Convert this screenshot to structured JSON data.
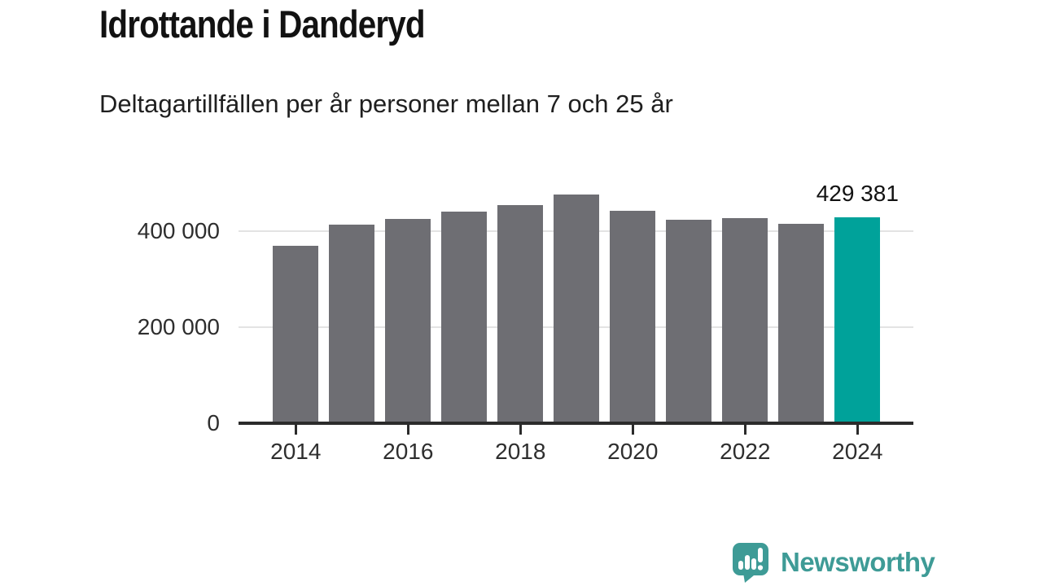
{
  "header": {
    "title": "Idrottande i Danderyd",
    "subtitle": "Deltagartillfällen per år personer mellan 7 och 25 år"
  },
  "chart_data": {
    "type": "bar",
    "title": "Idrottande i Danderyd",
    "subtitle": "Deltagartillfällen per år personer mellan 7 och 25 år",
    "xlabel": "",
    "ylabel": "",
    "categories": [
      2014,
      2015,
      2016,
      2017,
      2018,
      2019,
      2020,
      2021,
      2022,
      2023,
      2024
    ],
    "values": [
      369000,
      414000,
      425000,
      440000,
      454000,
      476000,
      442000,
      424000,
      427000,
      415000,
      429381
    ],
    "ylim": [
      0,
      500000
    ],
    "yticks": [
      0,
      200000,
      400000
    ],
    "ytick_labels": [
      "0",
      "200 000",
      "400 000"
    ],
    "xticks": [
      2014,
      2016,
      2018,
      2020,
      2022,
      2024
    ],
    "grid": "horizontal-behind-bars",
    "legend": "none",
    "highlight_index": 10,
    "annotation": {
      "index": 10,
      "label": "429 381"
    },
    "bar_color": "#6E6E73",
    "highlight_color": "#00A29A"
  },
  "colors": {
    "background": "#FFFFFF",
    "axis": "#2B2B2B",
    "gridline": "#E3E3E3",
    "title_text": "#121212",
    "tick_text": "#2E2E2E",
    "logo_teal": "#3E9B96"
  },
  "footer": {
    "logo_text": "Newsworthy",
    "logo_icon": "speech-bubble-bar-chart-icon"
  }
}
